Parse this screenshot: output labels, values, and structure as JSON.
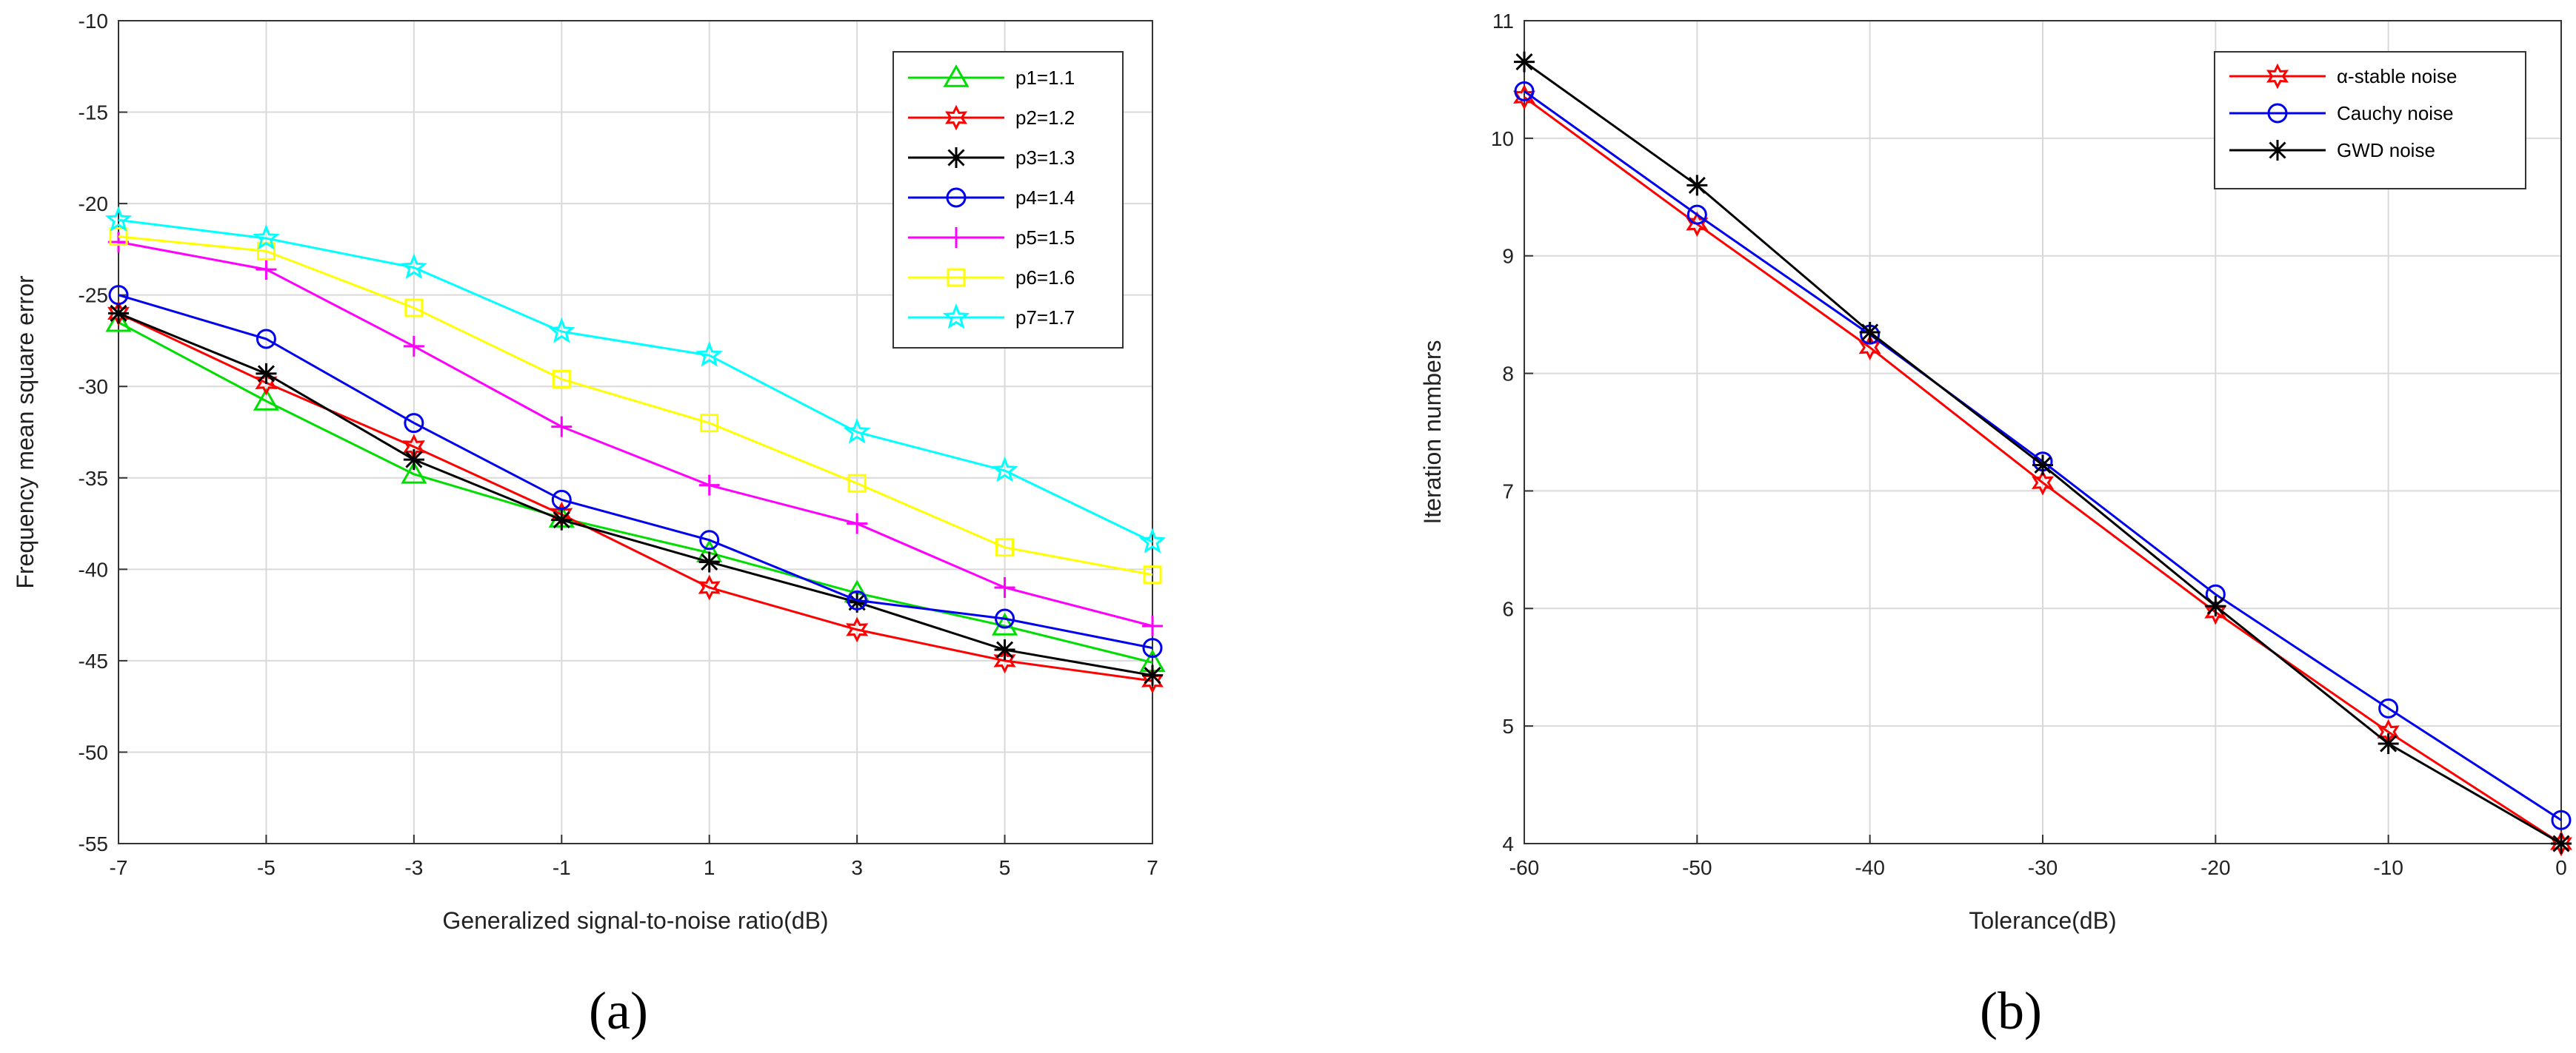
{
  "chart_data": [
    {
      "id": "a",
      "type": "line",
      "panel_label": "(a)",
      "xlabel": "Generalized signal-to-noise ratio(dB)",
      "ylabel": "Frequency mean square error",
      "xlim": [
        -7,
        7
      ],
      "ylim": [
        -55,
        -10
      ],
      "xticks": [
        -7,
        -5,
        -3,
        -1,
        1,
        3,
        5,
        7
      ],
      "yticks": [
        -10,
        -15,
        -20,
        -25,
        -30,
        -35,
        -40,
        -45,
        -50,
        -55
      ],
      "grid": true,
      "legend_position": "top-right",
      "x": [
        -7,
        -5,
        -3,
        -1,
        1,
        3,
        5,
        7
      ],
      "series": [
        {
          "name": "p1=1.1",
          "color": "#00dd00",
          "marker": "triangle",
          "values": [
            -26.5,
            -30.8,
            -34.8,
            -37.2,
            -39.1,
            -41.3,
            -43.1,
            -45.1
          ]
        },
        {
          "name": "p2=1.2",
          "color": "#ff0000",
          "marker": "hexagram",
          "values": [
            -26.0,
            -29.8,
            -33.3,
            -37.0,
            -41.0,
            -43.3,
            -45.0,
            -46.1
          ]
        },
        {
          "name": "p3=1.3",
          "color": "#000000",
          "marker": "asterisk",
          "values": [
            -26.0,
            -29.3,
            -34.0,
            -37.3,
            -39.6,
            -41.8,
            -44.4,
            -45.8
          ]
        },
        {
          "name": "p4=1.4",
          "color": "#0000ee",
          "marker": "circle",
          "values": [
            -25.0,
            -27.4,
            -32.0,
            -36.2,
            -38.4,
            -41.7,
            -42.7,
            -44.3
          ]
        },
        {
          "name": "p5=1.5",
          "color": "#ff00ff",
          "marker": "plus",
          "values": [
            -22.1,
            -23.6,
            -27.8,
            -32.2,
            -35.4,
            -37.5,
            -41.0,
            -43.1
          ]
        },
        {
          "name": "p6=1.6",
          "color": "#ffff00",
          "marker": "square",
          "values": [
            -21.8,
            -22.6,
            -25.7,
            -29.6,
            -32.0,
            -35.3,
            -38.8,
            -40.3
          ]
        },
        {
          "name": "p7=1.7",
          "color": "#00ffff",
          "marker": "pentagram",
          "values": [
            -20.9,
            -21.9,
            -23.5,
            -27.0,
            -28.3,
            -32.5,
            -34.6,
            -38.5
          ]
        }
      ]
    },
    {
      "id": "b",
      "type": "line",
      "panel_label": "(b)",
      "xlabel": "Tolerance(dB)",
      "ylabel": "Iteration numbers",
      "xlim": [
        -60,
        0
      ],
      "ylim": [
        4,
        11
      ],
      "xticks": [
        -60,
        -50,
        -40,
        -30,
        -20,
        -10,
        0
      ],
      "yticks": [
        4,
        5,
        6,
        7,
        8,
        9,
        10,
        11
      ],
      "grid": true,
      "legend_position": "top-right",
      "x": [
        -60,
        -50,
        -40,
        -30,
        -20,
        -10,
        0
      ],
      "series": [
        {
          "name": "α-stable noise",
          "color": "#ff0000",
          "marker": "hexagram",
          "values": [
            10.35,
            9.27,
            8.22,
            7.07,
            5.97,
            4.95,
            4.0
          ]
        },
        {
          "name": "Cauchy noise",
          "color": "#0000ee",
          "marker": "circle",
          "values": [
            10.4,
            9.35,
            8.33,
            7.25,
            6.12,
            5.15,
            4.2
          ]
        },
        {
          "name": "GWD noise",
          "color": "#000000",
          "marker": "asterisk",
          "values": [
            10.65,
            9.6,
            8.35,
            7.22,
            6.02,
            4.85,
            4.0
          ]
        }
      ]
    }
  ]
}
